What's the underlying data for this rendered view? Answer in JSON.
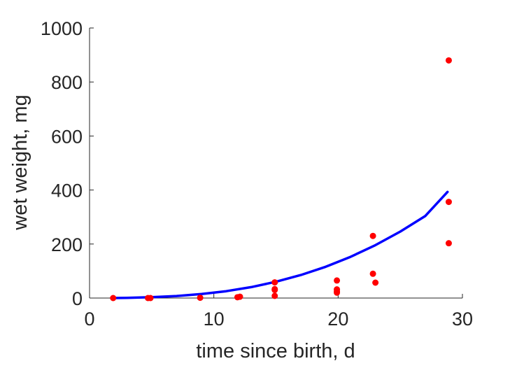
{
  "chart_data": {
    "type": "scatter",
    "title": "",
    "xlabel": "time since birth, d",
    "ylabel": "wet weight, mg",
    "xlim": [
      0,
      30
    ],
    "ylim": [
      0,
      1000
    ],
    "xticks": [
      0,
      10,
      20,
      30
    ],
    "yticks": [
      0,
      200,
      400,
      600,
      800,
      1000
    ],
    "xtick_labels": [
      "0",
      "10",
      "20",
      "30"
    ],
    "ytick_labels": [
      "0",
      "200",
      "400",
      "600",
      "800",
      "1000"
    ],
    "grid": false,
    "legend": null,
    "series": [
      {
        "kind": "points",
        "color": "#ff0000",
        "x": [
          1.9,
          4.7,
          4.9,
          8.9,
          11.9,
          12.1,
          14.9,
          14.9,
          14.9,
          14.9,
          19.9,
          19.9,
          19.9,
          19.9,
          22.8,
          22.8,
          23.0,
          28.9,
          28.9,
          28.9
        ],
        "y": [
          0,
          0,
          0,
          1,
          3,
          5,
          8,
          30,
          33,
          58,
          20,
          25,
          32,
          65,
          90,
          230,
          57,
          203,
          356,
          880
        ]
      },
      {
        "kind": "fit",
        "color": "#0000ff",
        "x": [
          1.8,
          3,
          5,
          7,
          9,
          11,
          13,
          15,
          17,
          19,
          21,
          23,
          25,
          27,
          28.8
        ],
        "y": [
          0.1,
          0.8,
          3.1,
          7.5,
          14.8,
          25.5,
          40.5,
          60.3,
          85.2,
          115.7,
          152.5,
          195.9,
          246.0,
          303.3,
          393.0
        ]
      }
    ]
  }
}
